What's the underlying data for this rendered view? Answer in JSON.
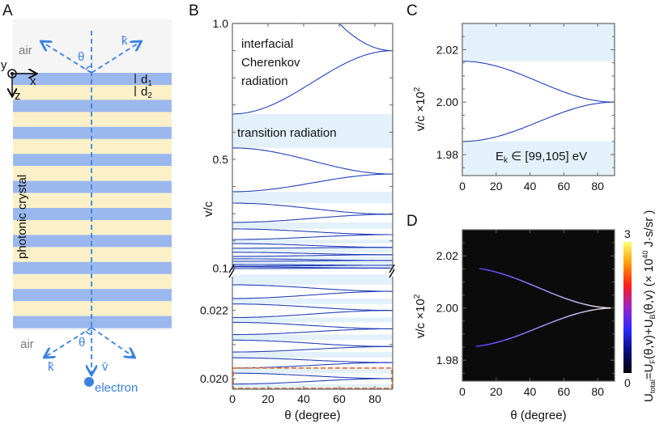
{
  "panel_labels": {
    "a": "A",
    "b": "B",
    "c": "C",
    "d": "D"
  },
  "panelA": {
    "air_top": "air",
    "air_bottom": "air",
    "theta_top": "θ",
    "theta_bottom": "θ",
    "k_top": "k̄",
    "k_bottom": "k̄",
    "v_vec": "v̄",
    "electron": "electron",
    "photonic_crystal": "photonic crystal",
    "axis_y": "y",
    "axis_x": "x",
    "axis_z": "z",
    "d1": {
      "base": "d",
      "sub": "1"
    },
    "d2": {
      "base": "d",
      "sub": "2"
    },
    "colors": {
      "background": "#f5f5f5",
      "layer1": "#9ab8ee",
      "layer2": "#fbf0c8",
      "arrows": "#3b82e0"
    },
    "layer_pairs": 10
  },
  "chart_data": [
    {
      "panel": "B",
      "type": "line",
      "xlabel": "θ (degree)",
      "ylabel": "v/c",
      "xlim": [
        0,
        90
      ],
      "xticks": [
        "0",
        "20",
        "40",
        "60",
        "80"
      ],
      "broken_axis": true,
      "upper": {
        "ylim": [
          0.089,
          1.0
        ],
        "yticks": [
          {
            "v": 1.0,
            "label": "1.0"
          },
          {
            "v": 0.5,
            "label": "0.5"
          },
          {
            "v": 0.1,
            "label": "0.1"
          }
        ],
        "light_line": {
          "theta_start": 60,
          "v_start": 1.0,
          "v_end": 0.9
        },
        "curves": [
          [
            0.667,
            0.9
          ],
          [
            0.542,
            0.446
          ],
          [
            0.381,
            0.446
          ],
          [
            0.339,
            0.298
          ],
          [
            0.268,
            0.298
          ],
          [
            0.244,
            0.223
          ],
          [
            0.205,
            0.223
          ],
          [
            0.19,
            0.176
          ],
          [
            0.173,
            0.176
          ],
          [
            0.158,
            0.149
          ],
          [
            0.143,
            0.149
          ],
          [
            0.134,
            0.128
          ],
          [
            0.125,
            0.128
          ],
          [
            0.113,
            0.11
          ],
          [
            0.107,
            0.11
          ],
          [
            0.104,
            0.1
          ],
          [
            0.098,
            0.1
          ]
        ],
        "shaded": [
          [
            0.542,
            0.667
          ],
          [
            0.339,
            0.381
          ],
          [
            0.244,
            0.268
          ],
          [
            0.19,
            0.205
          ],
          [
            0.158,
            0.173
          ],
          [
            0.134,
            0.143
          ],
          [
            0.113,
            0.125
          ],
          [
            0.104,
            0.107
          ]
        ]
      },
      "lower": {
        "ylim": [
          0.01969,
          0.02306
        ],
        "yticks": [
          {
            "v": 0.022,
            "label": "0.022"
          },
          {
            "v": 0.02,
            "label": "0.020"
          }
        ],
        "curves": [
          [
            0.02275,
            0.02256
          ],
          [
            0.02235,
            0.02256
          ],
          [
            0.02219,
            0.022
          ],
          [
            0.02179,
            0.022
          ],
          [
            0.02165,
            0.02146
          ],
          [
            0.02129,
            0.02146
          ],
          [
            0.02113,
            0.02094
          ],
          [
            0.02078,
            0.02094
          ],
          [
            0.02061,
            0.02047
          ],
          [
            0.02031,
            0.02047
          ],
          [
            0.02016,
            0.02
          ],
          [
            0.01984,
            0.02
          ]
        ],
        "shaded": [
          [
            0.02275,
            0.02306
          ],
          [
            0.02219,
            0.02235
          ],
          [
            0.02165,
            0.02179
          ],
          [
            0.02113,
            0.02129
          ],
          [
            0.02061,
            0.02078
          ],
          [
            0.02016,
            0.02031
          ],
          [
            0.01969,
            0.01984
          ]
        ],
        "highlight_box": [
          0.01969,
          0.02031
        ]
      },
      "annotations": {
        "cherenkov": [
          "interfacial",
          "Cherenkov",
          "radiation"
        ],
        "transition": "transition radiation"
      },
      "colors": {
        "curve": "#2340b8",
        "shade": "#e3f1fb",
        "box": "#e8743a"
      }
    },
    {
      "panel": "C",
      "type": "line",
      "xlabel": "",
      "ylabel": {
        "base": "v/c ×10",
        "sup": "2"
      },
      "xlim": [
        0,
        90
      ],
      "ylim": [
        1.972,
        2.03
      ],
      "xticks": [
        "0",
        "20",
        "40",
        "60",
        "80"
      ],
      "yticks": [
        {
          "v": 2.02,
          "label": "2.02"
        },
        {
          "v": 2.0,
          "label": "2.00"
        },
        {
          "v": 1.98,
          "label": "1.98"
        }
      ],
      "curves": [
        [
          2.0156,
          2.0
        ],
        [
          1.985,
          2.0
        ]
      ],
      "shaded": [
        [
          2.0156,
          2.03
        ],
        [
          1.972,
          1.985
        ]
      ],
      "annotation": {
        "pre": "E",
        "sub": "k",
        "post": " ∈ [99,105] eV"
      },
      "colors": {
        "curve": "#2340b8",
        "shade": "#e3f1fb"
      }
    },
    {
      "panel": "D",
      "type": "heatmap",
      "xlabel": "θ (degree)",
      "ylabel": {
        "base": "v/c ×10",
        "sup": "2"
      },
      "xlim": [
        0,
        90
      ],
      "ylim": [
        1.972,
        2.03
      ],
      "xticks": [
        "0",
        "20",
        "40",
        "60",
        "80"
      ],
      "yticks": [
        {
          "v": 2.02,
          "label": "2.02"
        },
        {
          "v": 2.0,
          "label": "2.00"
        },
        {
          "v": 1.98,
          "label": "1.98"
        }
      ],
      "bright_curves": [
        {
          "v0": 2.0156,
          "v90": 2.0,
          "theta_range": [
            10,
            88
          ]
        },
        {
          "v0": 1.985,
          "v90": 2.0,
          "theta_range": [
            8,
            88
          ]
        }
      ],
      "colorbar": {
        "min": 0,
        "max": 3,
        "min_label": "0",
        "max_label": "3",
        "colormap": [
          "#000000",
          "#0a0a80",
          "#2a2aff",
          "#9a22c8",
          "#ff1a1a",
          "#ff9a00",
          "#ffff70"
        ],
        "label_parts": [
          "U",
          "total",
          "=U",
          "F",
          "(θ,v)+U",
          "B",
          "(θ,v) (× 10",
          "40",
          " J·s/sr )"
        ]
      },
      "colors": {
        "background": "#0b0b0b"
      }
    }
  ]
}
